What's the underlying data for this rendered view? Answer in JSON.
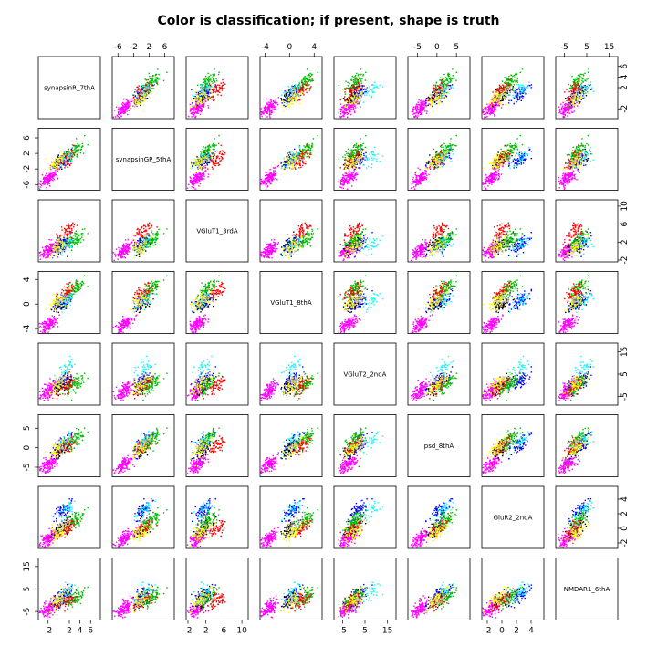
{
  "title": "Color is classification; if present, shape is truth",
  "chart_data": {
    "type": "scatter",
    "title": "Color is classification; if present, shape is truth",
    "variables": [
      "synapsinR_7thA",
      "synapsinGP_5thA",
      "VGluT1_3rdA",
      "VGluT1_8thA",
      "VGluT2_2ndA",
      "psd_8thA",
      "GluR2_2ndA",
      "NMDAR1_6thA"
    ],
    "axis_ranges": [
      [
        -3.5,
        7.5
      ],
      [
        -7,
        8
      ],
      [
        -2,
        11
      ],
      [
        -4.5,
        5
      ],
      [
        -8,
        18
      ],
      [
        -7,
        8
      ],
      [
        -2.5,
        5.5
      ],
      [
        -8,
        18
      ]
    ],
    "ticks": [
      [
        "-2",
        "2",
        "4",
        "6"
      ],
      [
        "-6",
        "-2",
        "2",
        "6"
      ],
      [
        "-2",
        "2",
        "6",
        "10"
      ],
      [
        "-4",
        "0",
        "4"
      ],
      [
        "-5",
        "5",
        "15"
      ],
      [
        "-5",
        "0",
        "5"
      ],
      [
        "-2",
        "0",
        "2",
        "4"
      ],
      [
        "-5",
        "5",
        "15"
      ]
    ],
    "tick_values": [
      [
        -2,
        2,
        4,
        6
      ],
      [
        -6,
        -2,
        2,
        6
      ],
      [
        -2,
        2,
        6,
        10
      ],
      [
        -4,
        0,
        4
      ],
      [
        -5,
        5,
        15
      ],
      [
        -5,
        0,
        5
      ],
      [
        -2,
        0,
        2,
        4
      ],
      [
        -5,
        5,
        15
      ]
    ],
    "class_colors": [
      "#ff00ff",
      "#000000",
      "#0000ff",
      "#00bb00",
      "#ff0000",
      "#00ffff",
      "#ffff00",
      "#bebebe"
    ],
    "cluster_centers": [
      [
        -2.0,
        -4.5,
        0.0,
        -3.5,
        -3.0,
        -4.5,
        -1.5,
        -4.0
      ],
      [
        0.5,
        0.0,
        1.5,
        0.0,
        0.0,
        -0.5,
        0.0,
        0.0
      ],
      [
        1.0,
        0.5,
        1.5,
        0.5,
        2.0,
        1.0,
        2.5,
        2.0
      ],
      [
        3.0,
        2.5,
        2.5,
        2.5,
        0.5,
        2.0,
        1.0,
        1.0
      ],
      [
        1.5,
        0.5,
        4.5,
        2.0,
        0.0,
        0.5,
        0.0,
        0.0
      ],
      [
        1.5,
        1.0,
        1.5,
        0.5,
        8.0,
        1.5,
        2.5,
        3.5
      ],
      [
        0.0,
        0.0,
        1.0,
        0.5,
        0.5,
        0.0,
        -0.5,
        0.5
      ],
      [
        1.0,
        0.5,
        1.5,
        1.0,
        3.0,
        1.0,
        0.5,
        1.0
      ]
    ],
    "layout": "scatterplot-matrix",
    "grid": false
  }
}
